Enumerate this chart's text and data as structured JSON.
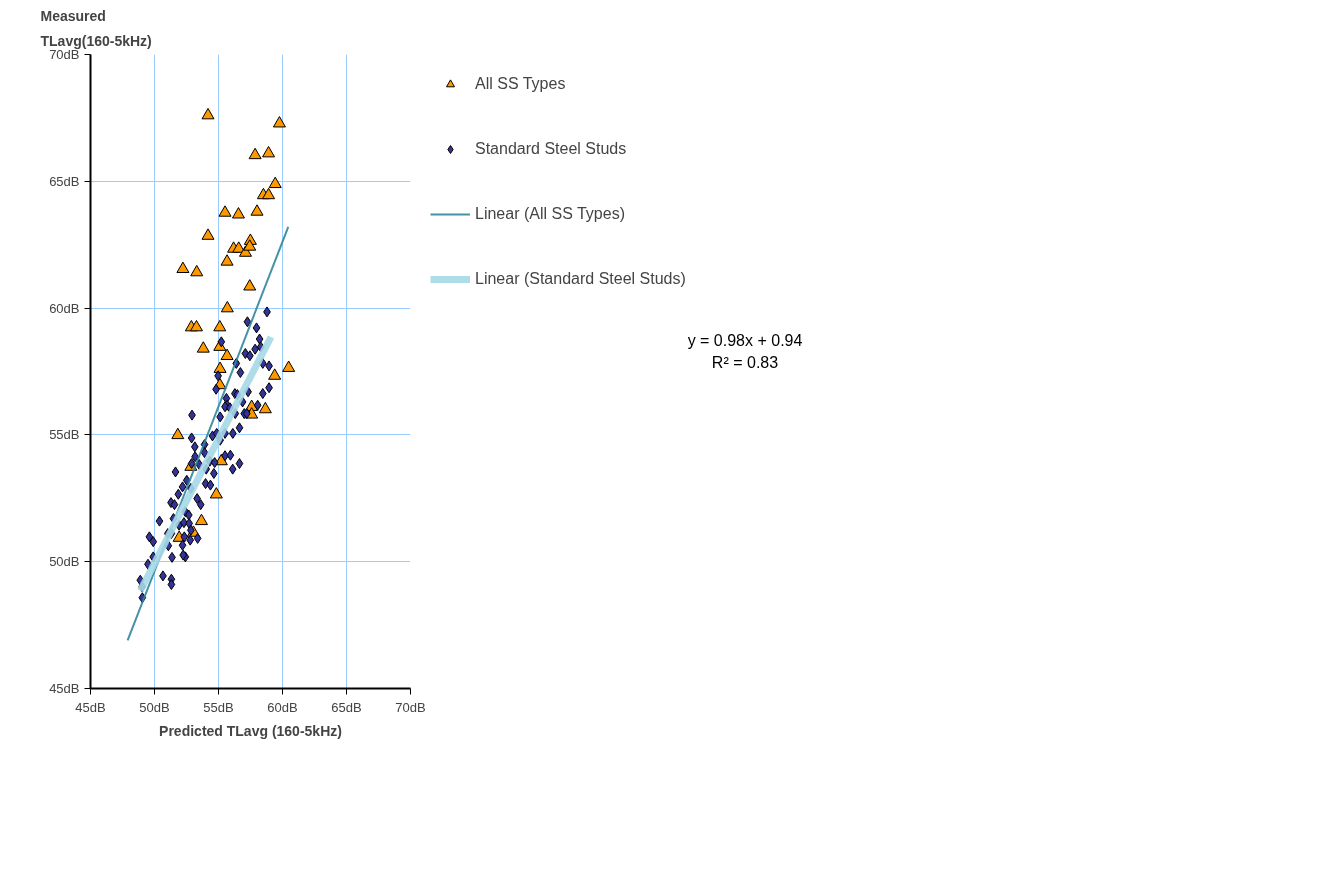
{
  "chart_data": {
    "type": "scatter",
    "ylabel": "Measured\nTLavg(160-5kHz)",
    "xlabel": "Predicted TLavg (160-5kHz)",
    "xlim": [
      45,
      70
    ],
    "ylim": [
      45,
      70
    ],
    "xticks": [
      {
        "value": 45,
        "label": "45dB"
      },
      {
        "value": 50,
        "label": "50dB"
      },
      {
        "value": 55,
        "label": "55dB"
      },
      {
        "value": 60,
        "label": "60dB"
      },
      {
        "value": 65,
        "label": "65dB"
      },
      {
        "value": 70,
        "label": "70dB"
      }
    ],
    "yticks": [
      {
        "value": 45,
        "label": "45dB"
      },
      {
        "value": 50,
        "label": "50dB"
      },
      {
        "value": 55,
        "label": "55dB"
      },
      {
        "value": 60,
        "label": "60dB"
      },
      {
        "value": 65,
        "label": "65dB"
      },
      {
        "value": 70,
        "label": "70dB"
      }
    ],
    "grid": true,
    "legend": "right",
    "annotations": [
      "y = 0.98x + 0.94",
      "R² = 0.83"
    ],
    "series": [
      {
        "name": "All SS Types",
        "type": "scatter",
        "marker": "triangle",
        "color": "#ff9900",
        "x": [
          54.18,
          59.76,
          57.86,
          58.91,
          59.43,
          58.51,
          58.91,
          55.51,
          56.56,
          58.01,
          54.18,
          57.49,
          56.18,
          56.58,
          57.11,
          57.44,
          55.67,
          52.22,
          53.3,
          57.44,
          55.69,
          52.88,
          53.28,
          55.1,
          53.81,
          55.67,
          55.12,
          59.39,
          60.48,
          55.1,
          55.11,
          51.82,
          55.22,
          54.83,
          53.67,
          51.93,
          53.04,
          52.84,
          58.66,
          57.59,
          57.59
        ],
        "values": [
          67.6,
          67.28,
          66.03,
          66.1,
          64.89,
          64.45,
          64.45,
          63.76,
          63.69,
          63.8,
          62.85,
          62.65,
          62.34,
          62.34,
          62.18,
          62.42,
          61.83,
          61.54,
          61.41,
          60.85,
          59.99,
          59.24,
          59.24,
          59.24,
          58.4,
          58.11,
          57.6,
          57.33,
          57.64,
          58.47,
          56.96,
          54.99,
          53.96,
          52.65,
          51.6,
          50.94,
          51.14,
          53.74,
          56.01,
          56.1,
          55.8
        ]
      },
      {
        "name": "Standard Steel Studs",
        "type": "scatter",
        "marker": "diamond",
        "color": "#333399",
        "x": [
          52.93,
          52.9,
          53.15,
          53.17,
          53.5,
          52.9,
          51.64,
          52.52,
          52.84,
          52.19,
          51.86,
          53.33,
          53.61,
          51.29,
          51.56,
          50.39,
          51.48,
          52.41,
          52.68,
          51.92,
          52.3,
          52.71,
          52.84,
          52.33,
          51.04,
          51.32,
          53.37,
          52.79,
          52.19,
          49.6,
          49.9,
          51.08,
          52.41,
          52.24,
          51.37,
          49.9,
          49.49,
          50.66,
          51.32,
          51.32,
          48.89,
          49.03,
          49.05,
          58.79,
          57.26,
          57.97,
          55.22,
          58.21,
          58.3,
          57.1,
          57.45,
          57.86,
          58.46,
          58.95,
          56.39,
          56.71,
          54.97,
          54.81,
          57.31,
          56.28,
          56.47,
          56.88,
          55.62,
          55.68,
          55.51,
          55.9,
          58.46,
          58.95,
          58.06,
          56.31,
          57.01,
          57.21,
          55.13,
          56.64,
          55.51,
          56.12,
          54.53,
          54.86,
          55.13,
          53.91,
          53.91,
          54.32,
          54.7,
          55.51,
          55.93,
          56.64,
          54.04,
          54.64,
          56.11,
          53.99,
          54.37
        ],
        "values": [
          55.78,
          54.88,
          54.53,
          54.14,
          53.83,
          53.87,
          53.54,
          53.21,
          52.89,
          52.95,
          52.66,
          52.49,
          52.25,
          52.33,
          52.25,
          51.6,
          51.7,
          51.97,
          51.84,
          51.44,
          51.54,
          51.51,
          51.24,
          50.98,
          51.11,
          51.11,
          50.92,
          50.85,
          50.65,
          50.98,
          50.79,
          50.63,
          50.19,
          50.26,
          50.17,
          50.19,
          49.9,
          49.44,
          49.31,
          49.1,
          49.27,
          49.01,
          48.58,
          59.85,
          59.46,
          59.22,
          58.67,
          58.78,
          58.47,
          58.21,
          58.12,
          58.38,
          57.82,
          57.72,
          57.82,
          57.46,
          57.33,
          56.8,
          56.7,
          56.63,
          56.59,
          56.3,
          56.44,
          56.17,
          56.11,
          56.07,
          56.63,
          56.86,
          56.17,
          55.84,
          55.84,
          55.84,
          55.71,
          55.28,
          55.06,
          55.06,
          54.96,
          55.06,
          54.79,
          54.62,
          54.3,
          53.96,
          53.91,
          54.18,
          54.2,
          53.87,
          53.65,
          53.48,
          53.65,
          53.08,
          53.02
        ]
      },
      {
        "name": "Linear (All SS Types)",
        "type": "line",
        "color": "#31859c",
        "line_style": "solid",
        "x": [
          47.9,
          60.45
        ],
        "values": [
          46.9,
          63.2
        ]
      },
      {
        "name": "Linear (Standard Steel Studs)",
        "type": "line",
        "color": "#a5d8e6",
        "line_style": "solid",
        "x": [
          48.9,
          59.1
        ],
        "values": [
          48.86,
          58.86
        ]
      }
    ]
  }
}
